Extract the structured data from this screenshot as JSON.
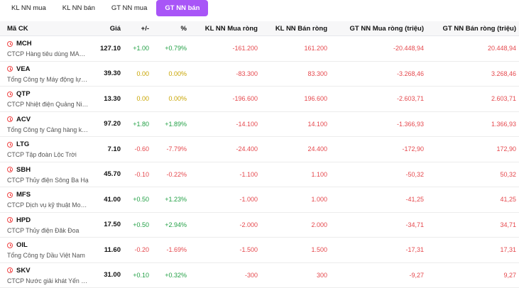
{
  "tabs": [
    {
      "label": "KL NN mua",
      "active": false
    },
    {
      "label": "KL NN bán",
      "active": false
    },
    {
      "label": "GT NN mua",
      "active": false
    },
    {
      "label": "GT NN bán",
      "active": true
    }
  ],
  "colors": {
    "accent": "#a855f7",
    "up": "#22a045",
    "flat": "#c8a400",
    "down": "#e5484d"
  },
  "table": {
    "headers": [
      "Mã CK",
      "Giá",
      "+/-",
      "%",
      "KL NN Mua ròng",
      "KL NN Bán ròng",
      "GT NN Mua ròng (triệu)",
      "GT NN Bán ròng (triệu)"
    ],
    "rows": [
      {
        "symbol": "MCH",
        "name": "CTCP Hàng tiêu dùng MASAN",
        "price": "127.10",
        "change": "+1.00",
        "pct": "+0.79%",
        "trend": "up",
        "kl_mua": "-161.200",
        "kl_ban": "161.200",
        "gt_mua": "-20.448,94",
        "gt_ban": "20.448,94"
      },
      {
        "symbol": "VEA",
        "name": "Tổng Công ty Máy động lực và Máy nông nghiệp",
        "price": "39.30",
        "change": "0.00",
        "pct": "0.00%",
        "trend": "flat",
        "kl_mua": "-83.300",
        "kl_ban": "83.300",
        "gt_mua": "-3.268,46",
        "gt_ban": "3.268,46"
      },
      {
        "symbol": "QTP",
        "name": "CTCP Nhiệt điện Quảng Ninh",
        "price": "13.30",
        "change": "0.00",
        "pct": "0.00%",
        "trend": "flat",
        "kl_mua": "-196.600",
        "kl_ban": "196.600",
        "gt_mua": "-2.603,71",
        "gt_ban": "2.603,71"
      },
      {
        "symbol": "ACV",
        "name": "Tổng Công ty Cảng hàng không Việt Nam",
        "price": "97.20",
        "change": "+1.80",
        "pct": "+1.89%",
        "trend": "up",
        "kl_mua": "-14.100",
        "kl_ban": "14.100",
        "gt_mua": "-1.366,93",
        "gt_ban": "1.366,93"
      },
      {
        "symbol": "LTG",
        "name": "CTCP Tập đoàn Lộc Trời",
        "price": "7.10",
        "change": "-0.60",
        "pct": "-7.79%",
        "trend": "down",
        "kl_mua": "-24.400",
        "kl_ban": "24.400",
        "gt_mua": "-172,90",
        "gt_ban": "172,90"
      },
      {
        "symbol": "SBH",
        "name": "CTCP Thủy điện Sông Ba Hạ",
        "price": "45.70",
        "change": "-0.10",
        "pct": "-0.22%",
        "trend": "down",
        "kl_mua": "-1.100",
        "kl_ban": "1.100",
        "gt_mua": "-50,32",
        "gt_ban": "50,32"
      },
      {
        "symbol": "MFS",
        "name": "CTCP Dịch vụ kỹ thuật Mobifone",
        "price": "41.00",
        "change": "+0.50",
        "pct": "+1.23%",
        "trend": "up",
        "kl_mua": "-1.000",
        "kl_ban": "1.000",
        "gt_mua": "-41,25",
        "gt_ban": "41,25"
      },
      {
        "symbol": "HPD",
        "name": "CTCP Thủy điện Đăk Đoa",
        "price": "17.50",
        "change": "+0.50",
        "pct": "+2.94%",
        "trend": "up",
        "kl_mua": "-2.000",
        "kl_ban": "2.000",
        "gt_mua": "-34,71",
        "gt_ban": "34,71"
      },
      {
        "symbol": "OIL",
        "name": "Tổng Công ty Dầu Việt Nam",
        "price": "11.60",
        "change": "-0.20",
        "pct": "-1.69%",
        "trend": "down",
        "kl_mua": "-1.500",
        "kl_ban": "1.500",
        "gt_mua": "-17,31",
        "gt_ban": "17,31"
      },
      {
        "symbol": "SKV",
        "name": "CTCP Nước giải khát Yến sào Khánh Hòa",
        "price": "31.00",
        "change": "+0.10",
        "pct": "+0.32%",
        "trend": "up",
        "kl_mua": "-300",
        "kl_ban": "300",
        "gt_mua": "-9,27",
        "gt_ban": "9,27"
      }
    ]
  }
}
